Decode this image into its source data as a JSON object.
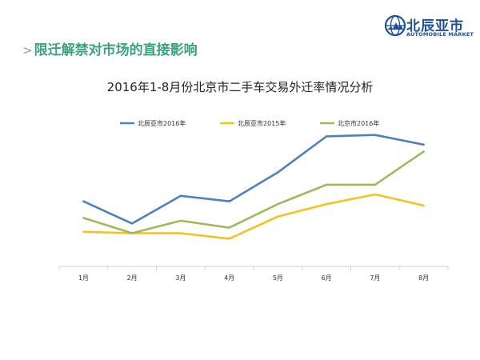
{
  "header": {
    "marker": ">",
    "title": "限迁解禁对市场的直接影响"
  },
  "logo": {
    "brand": "北辰亚市",
    "subtitle": "AUTOMOBILE MARKET"
  },
  "colors": {
    "header_green": "#3aa37b",
    "brand_blue": "#1d4f9c"
  },
  "chart_data": {
    "type": "line",
    "title": "2016年1-8月份北京市二手车交易外迁率情况分析",
    "xlabel": "",
    "ylabel": "",
    "categories": [
      "1月",
      "2月",
      "3月",
      "4月",
      "5月",
      "6月",
      "7月",
      "8月"
    ],
    "ylim": [
      0,
      100
    ],
    "grid": false,
    "legend_position": "top",
    "series": [
      {
        "name": "北辰亚市2016年",
        "color": "#4f81bd",
        "values": [
          47,
          31,
          51,
          47,
          68,
          94,
          95,
          88
        ]
      },
      {
        "name": "北辰亚市2015年",
        "color": "#f3c21b",
        "values": [
          25,
          24,
          24,
          20,
          36,
          45,
          52,
          44
        ]
      },
      {
        "name": "北京市2016年",
        "color": "#9bbb59",
        "values": [
          35,
          24,
          33,
          28,
          45,
          59,
          59,
          83
        ]
      }
    ]
  }
}
